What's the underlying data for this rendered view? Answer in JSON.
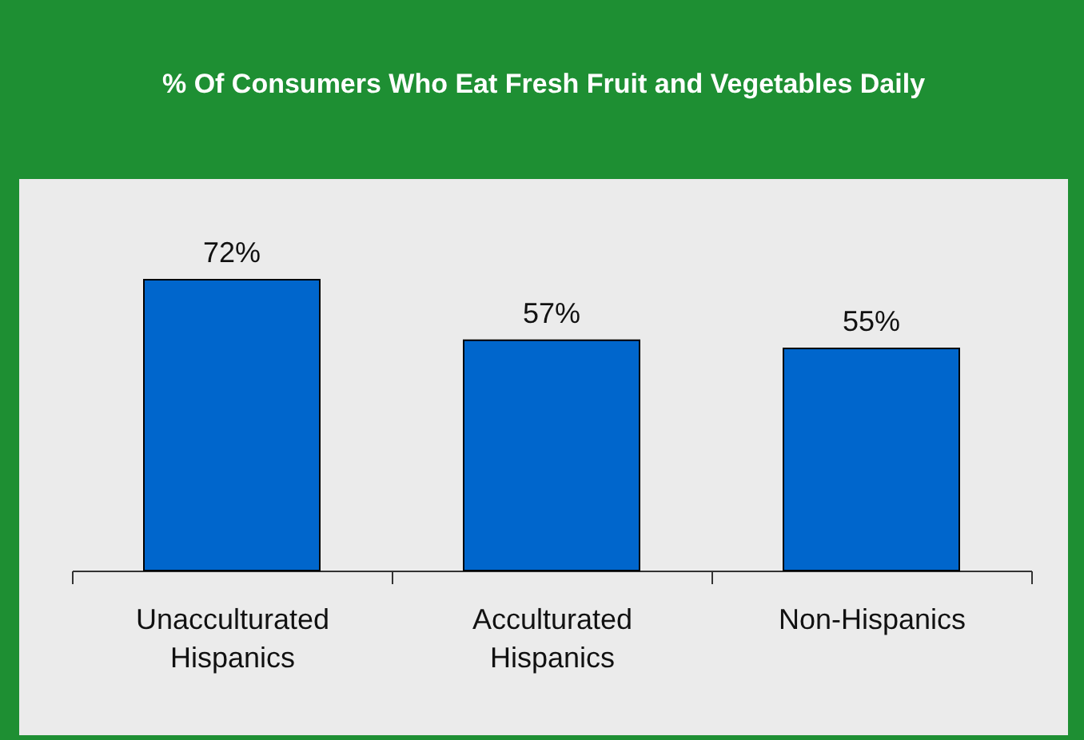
{
  "chart_data": {
    "type": "bar",
    "title": "% Of Consumers Who Eat Fresh Fruit and Vegetables Daily",
    "categories": [
      "Unacculturated Hispanics",
      "Acculturated Hispanics",
      "Non-Hispanics"
    ],
    "values": [
      72,
      57,
      55
    ],
    "color": "#0066cc",
    "value_labels": [
      "72%",
      "57%",
      "55%"
    ]
  }
}
